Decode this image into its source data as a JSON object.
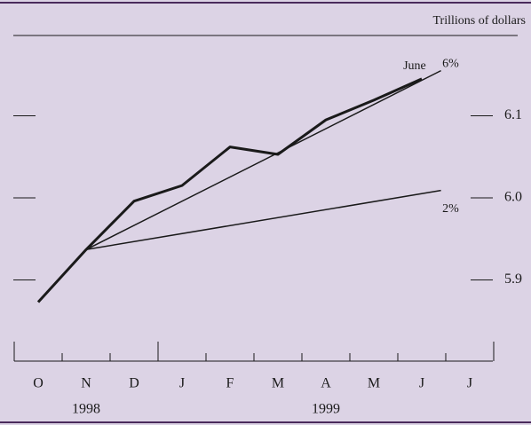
{
  "chart_data": {
    "type": "line",
    "unit_label": "Trillions of dollars",
    "categories": [
      "O",
      "N",
      "D",
      "J",
      "F",
      "M",
      "A",
      "M",
      "J",
      "J"
    ],
    "years": [
      {
        "label": "1998",
        "at": 1
      },
      {
        "label": "1999",
        "at": 6
      }
    ],
    "series": [
      {
        "color": "#1a1a1a",
        "width": 3,
        "values": [
          5.873,
          5.937,
          5.996,
          6.015,
          6.062,
          6.053,
          6.095,
          6.119,
          6.145,
          null
        ]
      },
      {
        "color": "#1a1a1a",
        "width": 1.5,
        "x": [
          1,
          8.4
        ],
        "values": [
          5.937,
          6.155
        ]
      },
      {
        "color": "#1a1a1a",
        "width": 1.5,
        "x": [
          1,
          8.4
        ],
        "values": [
          5.937,
          6.009
        ]
      }
    ],
    "annotations": [
      {
        "text": "June",
        "x": 7.85,
        "y": 6.16
      },
      {
        "text": "6%",
        "x": 8.6,
        "y": 6.163
      },
      {
        "text": "2%",
        "x": 8.6,
        "y": 5.986
      }
    ],
    "ylim": [
      5.8,
      6.2
    ],
    "yticks": [
      5.9,
      {
        "value": 6.0,
        "label": "6.0"
      },
      6.1
    ]
  }
}
